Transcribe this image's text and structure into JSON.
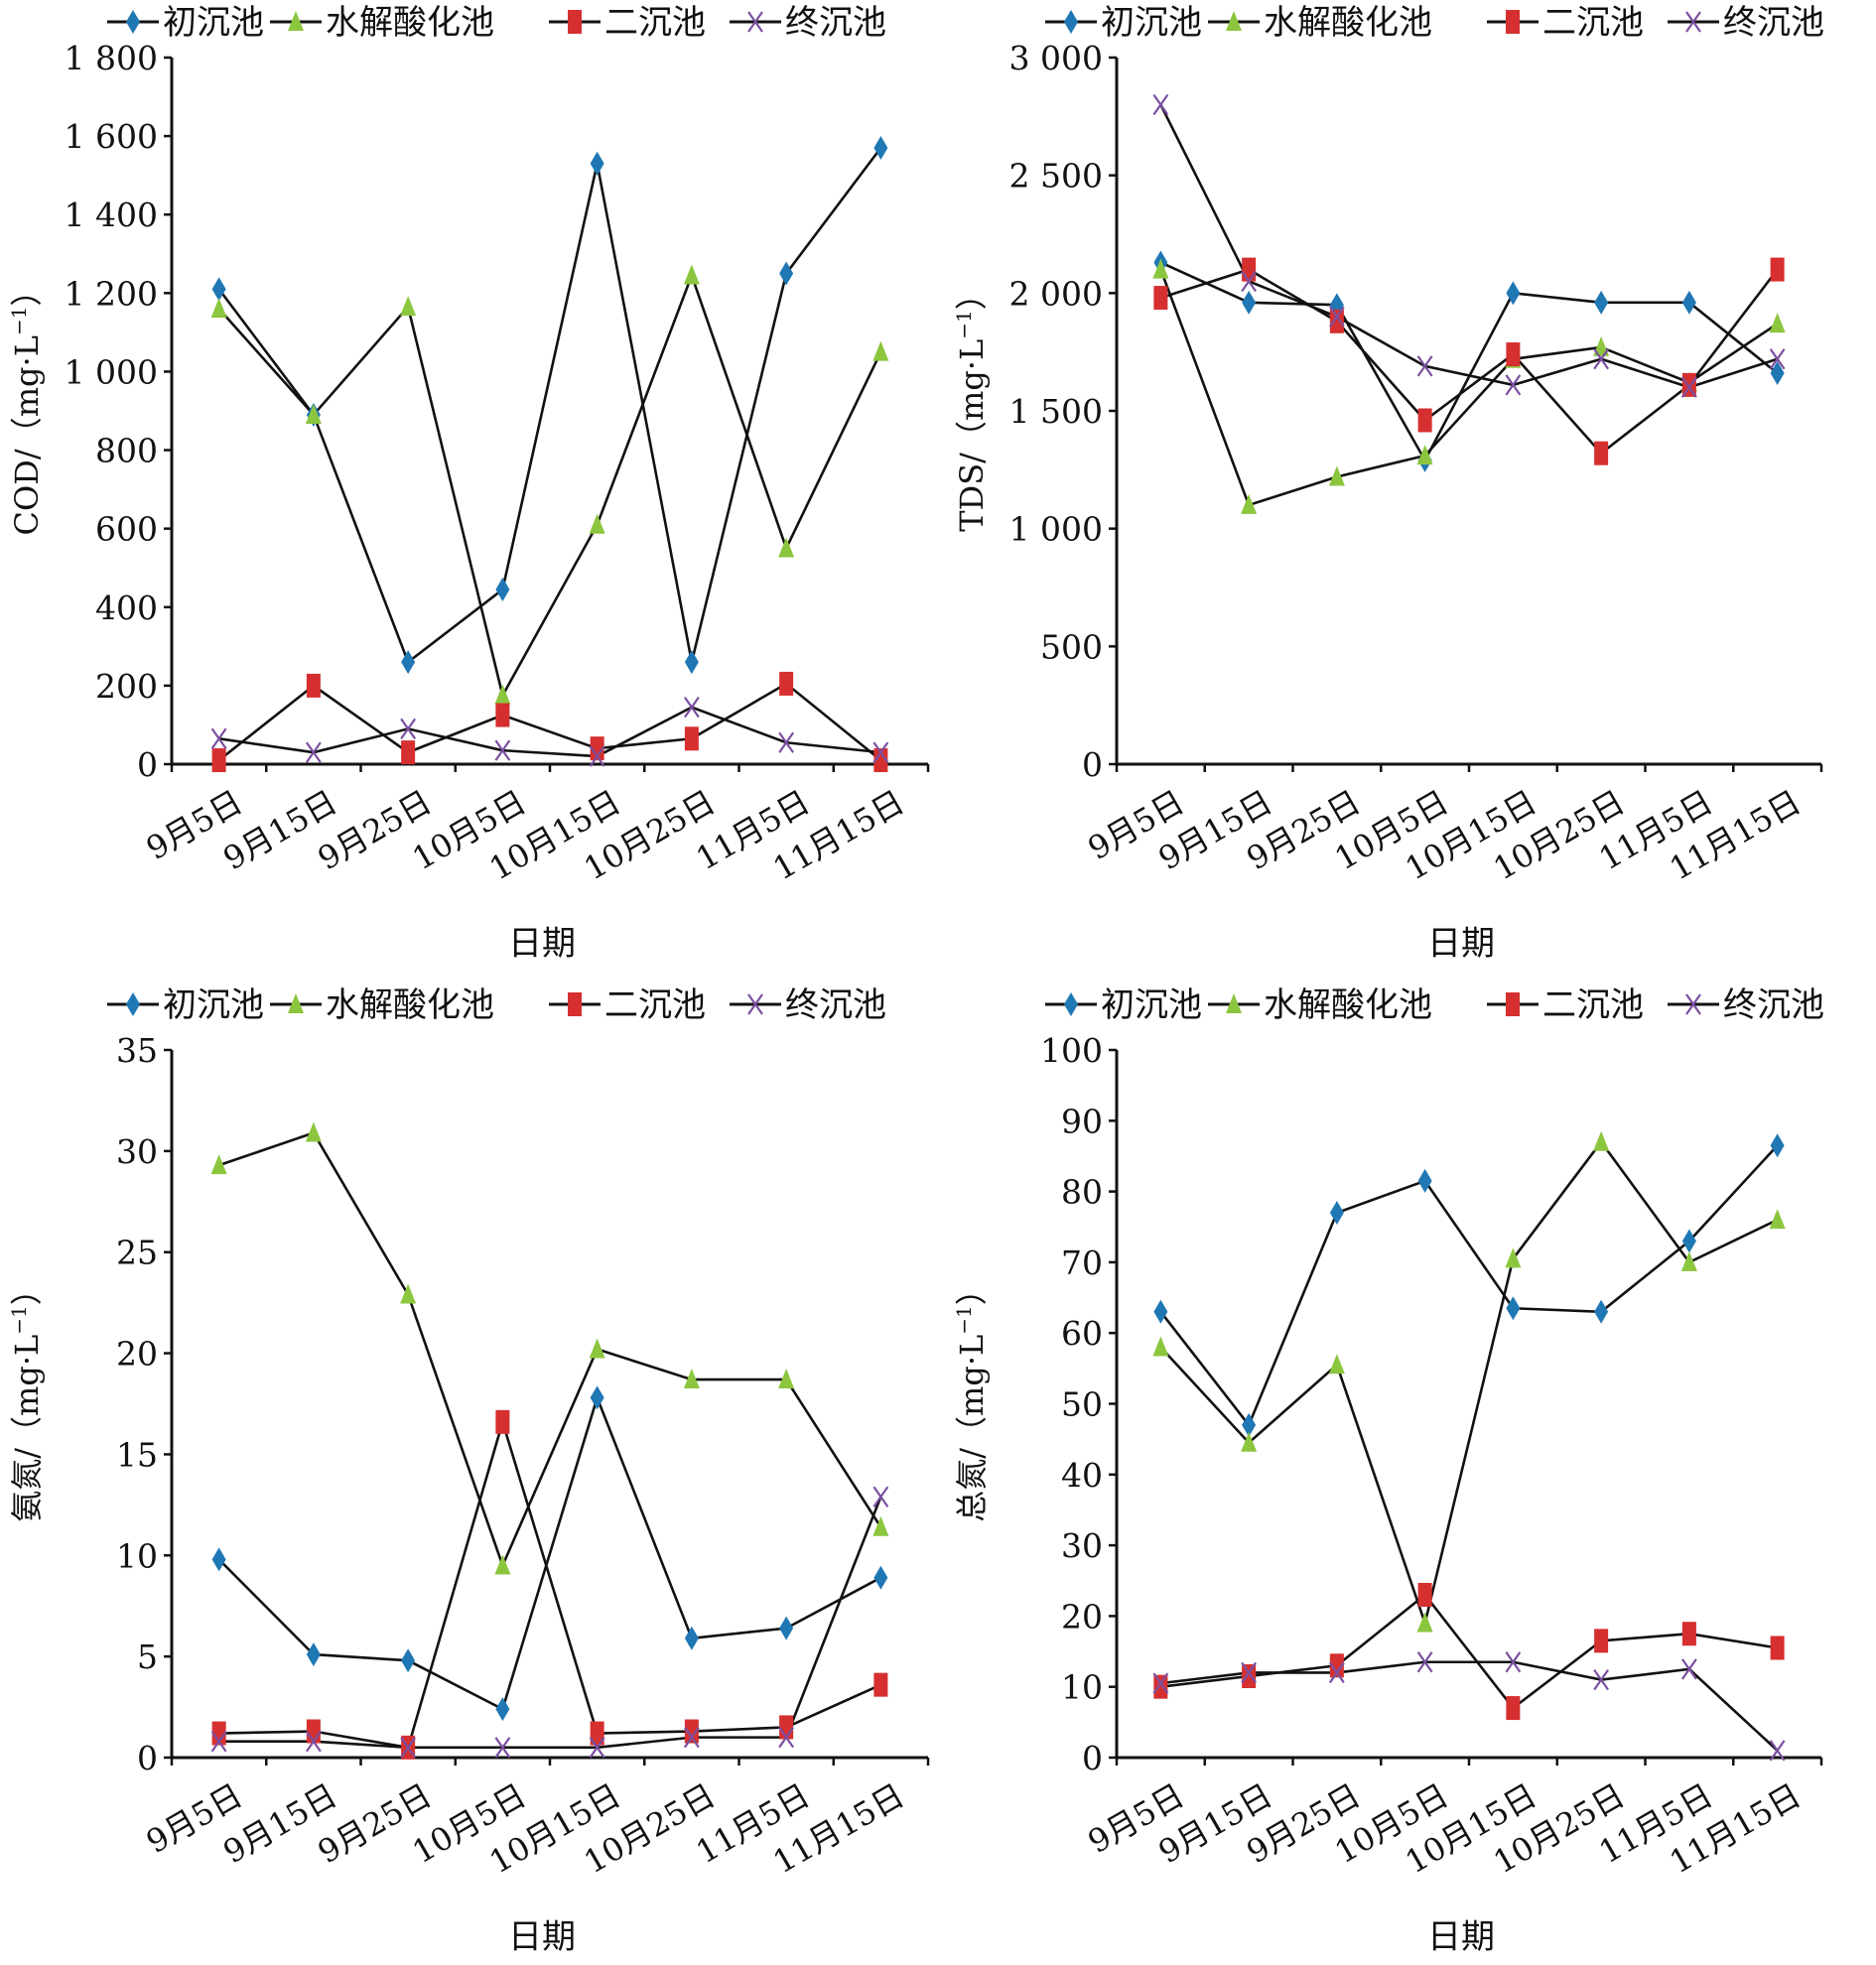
{
  "x_categories": [
    "9月5日",
    "9月15日",
    "9月25日",
    "10月5日",
    "10月15日",
    "10月25日",
    "11月5日",
    "11月15日"
  ],
  "series_names": [
    "初沉池",
    "水解酸化池",
    "二沉池",
    "终沉池"
  ],
  "series_colors": [
    "#1f77b4",
    "#8cc63f",
    "#d62f2f",
    "#7b4fa0"
  ],
  "series_markers": [
    "diamond",
    "triangle",
    "square",
    "x"
  ],
  "chart_data": [
    {
      "type": "line",
      "title": "",
      "xlabel": "日期",
      "ylabel_main": "COD/",
      "ylabel_unit": "（mg·L",
      "ylabel_sup": "−1",
      "ylabel_close": "）",
      "ylim": [
        0,
        1800
      ],
      "yticks": [
        0,
        200,
        400,
        600,
        800,
        1000,
        1200,
        1400,
        1600,
        1800
      ],
      "ytick_labels": [
        "0",
        "200",
        "400",
        "600",
        "800",
        "1 000",
        "1 200",
        "1 400",
        "1 600",
        "1 800"
      ],
      "categories": [
        "9月5日",
        "9月15日",
        "9月25日",
        "10月5日",
        "10月15日",
        "10月25日",
        "11月5日",
        "11月15日"
      ],
      "series": [
        {
          "name": "初沉池",
          "values": [
            1210,
            890,
            260,
            445,
            1530,
            260,
            1250,
            1570
          ]
        },
        {
          "name": "水解酸化池",
          "values": [
            1160,
            890,
            1165,
            175,
            610,
            1245,
            550,
            1050
          ]
        },
        {
          "name": "二沉池",
          "values": [
            10,
            200,
            30,
            125,
            40,
            65,
            205,
            10
          ]
        },
        {
          "name": "终沉池",
          "values": [
            65,
            30,
            90,
            35,
            20,
            145,
            55,
            30
          ]
        }
      ]
    },
    {
      "type": "line",
      "title": "",
      "xlabel": "日期",
      "ylabel_main": "TDS/",
      "ylabel_unit": "（mg·L",
      "ylabel_sup": "−1",
      "ylabel_close": "）",
      "ylim": [
        0,
        3000
      ],
      "yticks": [
        0,
        500,
        1000,
        1500,
        2000,
        2500,
        3000
      ],
      "ytick_labels": [
        "0",
        "500",
        "1 000",
        "1 500",
        "2 000",
        "2 500",
        "3 000"
      ],
      "categories": [
        "9月5日",
        "9月15日",
        "9月25日",
        "10月5日",
        "10月15日",
        "10月25日",
        "11月5日",
        "11月15日"
      ],
      "series": [
        {
          "name": "初沉池",
          "values": [
            2130,
            1960,
            1950,
            1290,
            2000,
            1960,
            1960,
            1660
          ]
        },
        {
          "name": "水解酸化池",
          "values": [
            2100,
            1100,
            1220,
            1310,
            1720,
            1770,
            1620,
            1870
          ]
        },
        {
          "name": "二沉池",
          "values": [
            1980,
            2100,
            1880,
            1460,
            1740,
            1320,
            1610,
            2100
          ]
        },
        {
          "name": "终沉池",
          "values": [
            2800,
            2050,
            1900,
            1690,
            1610,
            1720,
            1600,
            1720
          ]
        }
      ]
    },
    {
      "type": "line",
      "title": "",
      "xlabel": "日期",
      "ylabel_main": "氨氮/",
      "ylabel_unit": "（mg·L",
      "ylabel_sup": "−1",
      "ylabel_close": "）",
      "ylim": [
        0,
        35
      ],
      "yticks": [
        0,
        5,
        10,
        15,
        20,
        25,
        30,
        35
      ],
      "ytick_labels": [
        "0",
        "5",
        "10",
        "15",
        "20",
        "25",
        "30",
        "35"
      ],
      "categories": [
        "9月5日",
        "9月15日",
        "9月25日",
        "10月5日",
        "10月15日",
        "10月25日",
        "11月5日",
        "11月15日"
      ],
      "series": [
        {
          "name": "初沉池",
          "values": [
            9.8,
            5.1,
            4.8,
            2.4,
            17.8,
            5.9,
            6.4,
            8.9
          ]
        },
        {
          "name": "水解酸化池",
          "values": [
            29.3,
            30.9,
            22.9,
            9.5,
            20.2,
            18.7,
            18.7,
            11.4
          ]
        },
        {
          "name": "二沉池",
          "values": [
            1.2,
            1.3,
            0.5,
            16.6,
            1.2,
            1.3,
            1.5,
            3.6
          ]
        },
        {
          "name": "终沉池",
          "values": [
            0.8,
            0.8,
            0.5,
            0.5,
            0.5,
            1.0,
            1.0,
            12.9
          ]
        }
      ]
    },
    {
      "type": "line",
      "title": "",
      "xlabel": "日期",
      "ylabel_main": "总氮/",
      "ylabel_unit": "（mg·L",
      "ylabel_sup": "−1",
      "ylabel_close": "）",
      "ylim": [
        0,
        100
      ],
      "yticks": [
        0,
        10,
        20,
        30,
        40,
        50,
        60,
        70,
        80,
        90,
        100
      ],
      "ytick_labels": [
        "0",
        "10",
        "20",
        "30",
        "40",
        "50",
        "60",
        "70",
        "80",
        "90",
        "100"
      ],
      "categories": [
        "9月5日",
        "9月15日",
        "9月25日",
        "10月5日",
        "10月15日",
        "10月25日",
        "11月5日",
        "11月15日"
      ],
      "series": [
        {
          "name": "初沉池",
          "values": [
            63,
            47,
            77,
            81.5,
            63.5,
            63,
            73,
            86.5
          ]
        },
        {
          "name": "水解酸化池",
          "values": [
            58,
            44.5,
            55.5,
            19,
            70.5,
            87,
            70,
            76
          ]
        },
        {
          "name": "二沉池",
          "values": [
            10,
            11.5,
            13,
            23,
            7,
            16.5,
            17.5,
            15.5
          ]
        },
        {
          "name": "终沉池",
          "values": [
            10.5,
            12,
            12,
            13.5,
            13.5,
            11,
            12.5,
            1
          ]
        }
      ]
    }
  ]
}
